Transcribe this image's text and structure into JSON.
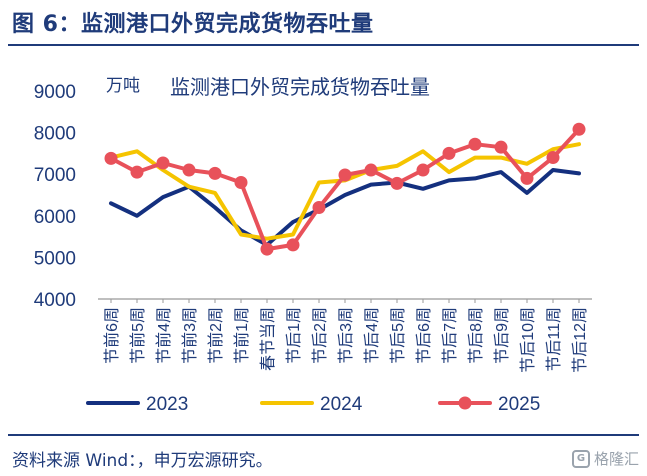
{
  "figure": {
    "title": "图 6：监测港口外贸完成货物吞吐量",
    "source": "资料来源 Wind：，申万宏源研究。",
    "watermark": "格隆汇",
    "watermark_logo": "G"
  },
  "chart_data": {
    "type": "line",
    "title": "监测港口外贸完成货物吞吐量",
    "unit": "万吨",
    "ylim": [
      4000,
      9000
    ],
    "yticks": [
      4000,
      5000,
      6000,
      7000,
      8000,
      9000
    ],
    "grid": false,
    "legend_position": "bottom",
    "categories": [
      "节前6周",
      "节前5周",
      "节前4周",
      "节前3周",
      "节前2周",
      "节前1周",
      "春节当周",
      "节后1周",
      "节后2周",
      "节后3周",
      "节后4周",
      "节后5周",
      "节后6周",
      "节后7周",
      "节后8周",
      "节后9周",
      "节后10周",
      "节后11周",
      "节后12周"
    ],
    "series": [
      {
        "name": "2023",
        "color": "#14307f",
        "marker": false,
        "values": [
          6300,
          6000,
          6450,
          6700,
          6200,
          5650,
          5300,
          5850,
          6150,
          6500,
          6750,
          6800,
          6650,
          6850,
          6900,
          7050,
          6550,
          7100,
          7020
        ]
      },
      {
        "name": "2024",
        "color": "#f5c400",
        "marker": false,
        "values": [
          7400,
          7550,
          7100,
          6700,
          6550,
          5550,
          5450,
          5550,
          6800,
          6850,
          7100,
          7200,
          7550,
          7050,
          7400,
          7400,
          7250,
          7600,
          7720
        ]
      },
      {
        "name": "2025",
        "color": "#e8515a",
        "marker": true,
        "values": [
          7380,
          7050,
          7270,
          7100,
          7020,
          6800,
          5200,
          5300,
          6200,
          6980,
          7100,
          6780,
          7100,
          7500,
          7720,
          7650,
          6900,
          7400,
          8080
        ]
      }
    ]
  }
}
